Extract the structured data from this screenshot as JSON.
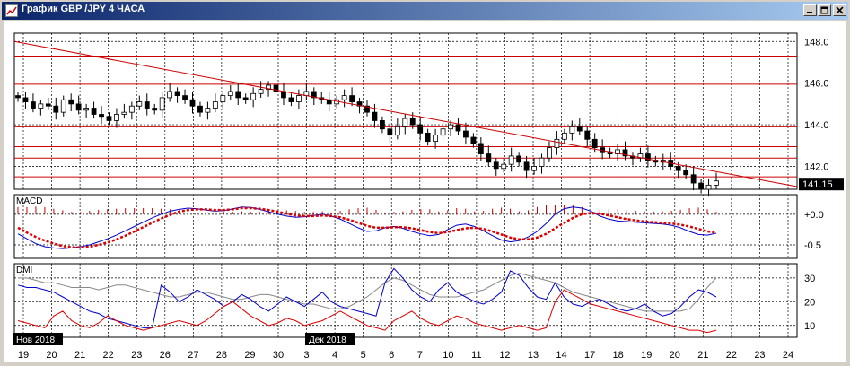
{
  "window": {
    "title": "График GBP /JPY  4 ЧАСА",
    "buttons": [
      "minimize",
      "maximize",
      "close"
    ]
  },
  "colors": {
    "titlebar_start": "#0a246a",
    "titlebar_end": "#a6caf0",
    "price_line": "#000000",
    "resistance": "#cc0000",
    "macd_hist": "#cc0000",
    "macd_line": "#0000cc",
    "macd_signal": "#dd0000",
    "dmi_plus": "#0000cc",
    "dmi_minus": "#dd0000",
    "adx": "#888888",
    "grid": "#000000"
  },
  "chart_data": [
    {
      "panel": "price",
      "type": "candlestick",
      "title": "GBP /JPY",
      "timeframe": "4 ЧАСА",
      "y_ticks": [
        "148.0",
        "146.0",
        "144.0",
        "142.0"
      ],
      "ylim": [
        140.9,
        148.4
      ],
      "current_price": "141.15",
      "horizontal_levels": [
        147.3,
        145.95,
        143.9,
        142.95,
        142.4,
        141.5
      ],
      "trendline": {
        "from": [
          0,
          148.0
        ],
        "to": [
          78,
          141.2
        ]
      },
      "close_values": [
        145.3,
        145.1,
        144.8,
        145.0,
        144.9,
        144.6,
        145.2,
        145.0,
        144.7,
        144.8,
        144.5,
        144.4,
        144.2,
        144.5,
        144.6,
        144.9,
        145.1,
        144.8,
        144.7,
        145.3,
        145.6,
        145.4,
        145.2,
        144.9,
        144.6,
        144.8,
        145.1,
        145.4,
        145.6,
        145.3,
        145.2,
        145.5,
        145.7,
        145.9,
        145.6,
        145.3,
        145.1,
        145.4,
        145.6,
        145.3,
        145.2,
        145.0,
        145.2,
        145.4,
        145.1,
        144.9,
        144.6,
        144.2,
        143.8,
        143.5,
        143.9,
        144.3,
        144.0,
        143.6,
        143.2,
        143.5,
        143.8,
        144.0,
        143.7,
        143.4,
        143.1,
        142.6,
        142.2,
        141.9,
        142.1,
        142.5,
        142.2,
        141.8,
        142.0,
        142.4,
        142.9,
        143.3,
        143.6,
        143.9,
        143.7,
        143.3,
        142.9,
        142.7,
        142.6,
        142.8,
        142.5,
        142.4,
        142.6,
        142.3,
        142.2,
        142.3,
        142.0,
        141.8,
        141.6,
        141.2,
        140.9,
        141.1,
        141.3
      ]
    },
    {
      "panel": "macd",
      "type": "line",
      "label": "MACD",
      "y_ticks": [
        "+0.0",
        "-0.5"
      ],
      "ylim": [
        -0.72,
        0.32
      ],
      "series": [
        {
          "values": [
            -0.32,
            -0.4,
            -0.48,
            -0.53,
            -0.55,
            -0.56,
            -0.55,
            -0.53,
            -0.5,
            -0.45,
            -0.4,
            -0.34,
            -0.27,
            -0.2,
            -0.13,
            -0.06,
            0.0,
            0.05,
            0.08,
            0.1,
            0.09,
            0.07,
            0.05,
            0.06,
            0.09,
            0.12,
            0.11,
            0.08,
            0.04,
            0.0,
            -0.03,
            -0.05,
            -0.04,
            -0.02,
            0.0,
            -0.03,
            -0.08,
            -0.15,
            -0.22,
            -0.28,
            -0.27,
            -0.22,
            -0.2,
            -0.23,
            -0.28,
            -0.32,
            -0.35,
            -0.33,
            -0.25,
            -0.18,
            -0.16,
            -0.2,
            -0.27,
            -0.35,
            -0.42,
            -0.45,
            -0.43,
            -0.37,
            -0.28,
            -0.15,
            0.0,
            0.09,
            0.12,
            0.1,
            0.05,
            -0.03,
            -0.08,
            -0.11,
            -0.12,
            -0.13,
            -0.14,
            -0.15,
            -0.16,
            -0.18,
            -0.22,
            -0.28,
            -0.33,
            -0.34,
            -0.31
          ]
        },
        {
          "values": [
            -0.22,
            -0.3,
            -0.37,
            -0.43,
            -0.48,
            -0.52,
            -0.54,
            -0.54,
            -0.53,
            -0.5,
            -0.46,
            -0.41,
            -0.35,
            -0.28,
            -0.21,
            -0.14,
            -0.07,
            -0.01,
            0.04,
            0.07,
            0.08,
            0.08,
            0.07,
            0.07,
            0.08,
            0.1,
            0.1,
            0.09,
            0.07,
            0.04,
            0.01,
            -0.02,
            -0.03,
            -0.03,
            -0.02,
            -0.03,
            -0.05,
            -0.09,
            -0.14,
            -0.19,
            -0.22,
            -0.22,
            -0.21,
            -0.21,
            -0.23,
            -0.26,
            -0.29,
            -0.31,
            -0.29,
            -0.26,
            -0.23,
            -0.22,
            -0.24,
            -0.28,
            -0.33,
            -0.38,
            -0.41,
            -0.41,
            -0.38,
            -0.32,
            -0.23,
            -0.14,
            -0.06,
            0.0,
            0.02,
            0.01,
            -0.02,
            -0.05,
            -0.08,
            -0.1,
            -0.12,
            -0.13,
            -0.14,
            -0.15,
            -0.17,
            -0.2,
            -0.24,
            -0.28,
            -0.3
          ]
        }
      ]
    },
    {
      "panel": "dmi",
      "type": "line",
      "label": "DMI",
      "y_ticks": [
        "30",
        "20",
        "10"
      ],
      "ylim": [
        5,
        36
      ],
      "series": [
        {
          "values": [
            27,
            26,
            26,
            25,
            24,
            22,
            20,
            18,
            16,
            15,
            13,
            12,
            11,
            10,
            9,
            9,
            27,
            24,
            20,
            22,
            25,
            23,
            21,
            18,
            20,
            23,
            21,
            18,
            16,
            19,
            22,
            20,
            18,
            21,
            24,
            20,
            18,
            17,
            16,
            15,
            14,
            28,
            34,
            30,
            25,
            22,
            20,
            25,
            28,
            24,
            22,
            20,
            19,
            21,
            24,
            33,
            31,
            26,
            22,
            21,
            28,
            22,
            19,
            18,
            20,
            21,
            19,
            17,
            16,
            17,
            19,
            16,
            14,
            15,
            18,
            22,
            25,
            24,
            22
          ]
        },
        {
          "values": [
            12,
            11,
            10,
            9,
            14,
            16,
            12,
            10,
            9,
            11,
            14,
            12,
            10,
            9,
            8,
            9,
            10,
            11,
            12,
            11,
            10,
            12,
            15,
            18,
            20,
            17,
            14,
            12,
            10,
            11,
            13,
            12,
            10,
            11,
            12,
            14,
            16,
            14,
            12,
            10,
            9,
            8,
            12,
            14,
            16,
            13,
            11,
            10,
            12,
            14,
            13,
            11,
            10,
            9,
            8,
            9,
            10,
            9,
            8,
            9,
            20,
            25,
            23,
            21,
            19,
            18,
            17,
            16,
            15,
            14,
            13,
            12,
            11,
            10,
            9,
            8,
            8,
            7,
            8
          ]
        },
        {
          "values": [
            30,
            30,
            29,
            28,
            28,
            27,
            26,
            26,
            26,
            25,
            26,
            27,
            27,
            26,
            25,
            24,
            23,
            22,
            22,
            23,
            24,
            24,
            23,
            22,
            21,
            21,
            22,
            23,
            23,
            22,
            21,
            20,
            19,
            19,
            18,
            17,
            17,
            18,
            20,
            22,
            25,
            28,
            30,
            29,
            27,
            25,
            23,
            22,
            22,
            22,
            23,
            24,
            25,
            27,
            29,
            31,
            32,
            31,
            30,
            29,
            28,
            26,
            24,
            23,
            22,
            21,
            20,
            19,
            18,
            17,
            16,
            16,
            16,
            16,
            16,
            17,
            21,
            26,
            30
          ]
        }
      ]
    },
    {
      "panel": "time-axis",
      "type": "table",
      "x_ticks": [
        "19",
        "20",
        "21",
        "22",
        "23",
        "26",
        "27",
        "28",
        "29",
        "30",
        "3",
        "4",
        "5",
        "6",
        "7",
        "10",
        "11",
        "12",
        "13",
        "14",
        "17",
        "18",
        "19",
        "20",
        "21",
        "22",
        "23",
        "24"
      ],
      "month_labels": [
        "Нов 2018",
        "Дек 2018"
      ]
    }
  ]
}
